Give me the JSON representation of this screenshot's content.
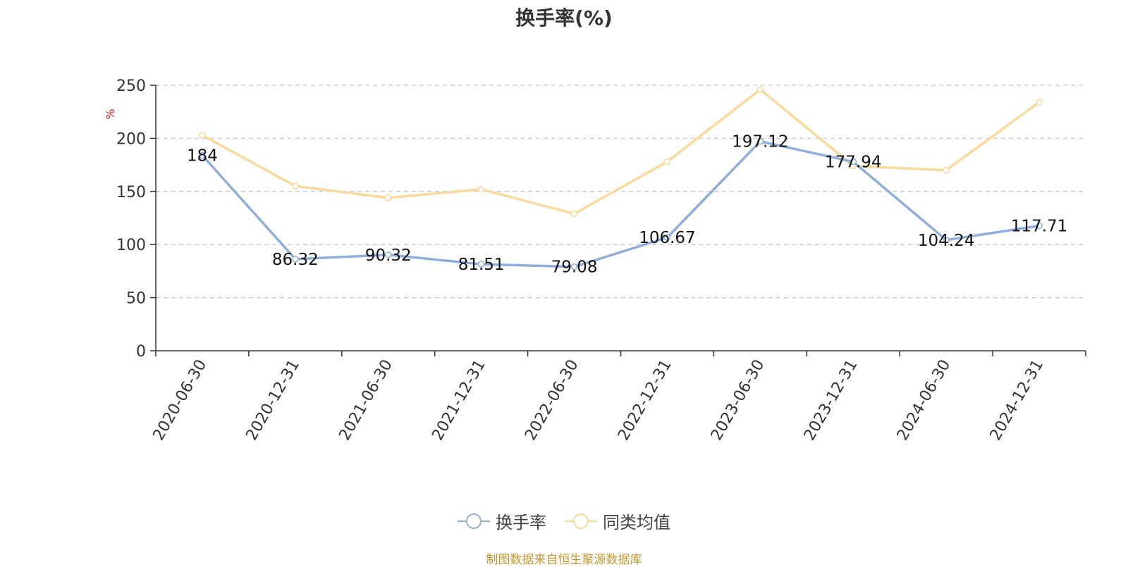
{
  "chart_data": {
    "type": "line",
    "title": "换手率(%)",
    "ylabel": "%",
    "xlabel": "",
    "ylim": [
      0,
      250
    ],
    "yticks": [
      0,
      50,
      100,
      150,
      200,
      250
    ],
    "grid": "horizontal dashed",
    "categories": [
      "2020-06-30",
      "2020-12-31",
      "2021-06-30",
      "2021-12-31",
      "2022-06-30",
      "2022-12-31",
      "2023-06-30",
      "2023-12-31",
      "2024-06-30",
      "2024-12-31"
    ],
    "series": [
      {
        "name": "换手率",
        "color": "#8eaedb",
        "values": [
          184,
          86.32,
          90.32,
          81.51,
          79.08,
          106.67,
          197.12,
          177.94,
          104.24,
          117.71
        ],
        "labels": [
          "184",
          "86.32",
          "90.32",
          "81.51",
          "79.08",
          "106.67",
          "197.12",
          "177.94",
          "104.24",
          "117.71"
        ]
      },
      {
        "name": "同类均值",
        "color": "#fad99b",
        "values": [
          203,
          155,
          144,
          152,
          129,
          178,
          246,
          174,
          170,
          234
        ]
      }
    ],
    "legend_position": "bottom-center"
  },
  "source_note": "制图数据来自恒生聚源数据库"
}
